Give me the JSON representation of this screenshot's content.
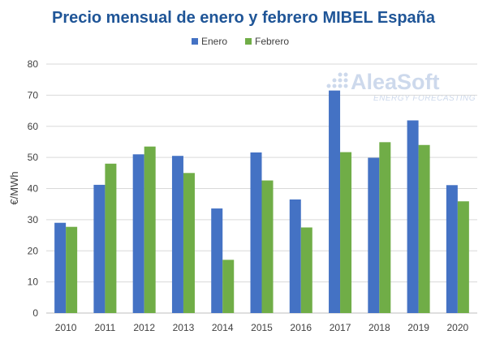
{
  "title": "Precio mensual de enero y febrero MIBEL España",
  "watermark": {
    "brand": "AleaSoft",
    "tagline": "ENERGY FORECASTING"
  },
  "colors": {
    "enero": "#4472c4",
    "febrero": "#70ad47",
    "title": "#1f5597",
    "grid": "#d9d9d9",
    "axis": "#bfbfbf"
  },
  "chart_data": {
    "type": "bar",
    "title": "Precio mensual de enero y febrero MIBEL España",
    "xlabel": "",
    "ylabel": "€/MWh",
    "ylim": [
      0,
      80
    ],
    "yticks": [
      0,
      10,
      20,
      30,
      40,
      50,
      60,
      70,
      80
    ],
    "grid": true,
    "legend_position": "top-center",
    "categories": [
      "2010",
      "2011",
      "2012",
      "2013",
      "2014",
      "2015",
      "2016",
      "2017",
      "2018",
      "2019",
      "2020"
    ],
    "series": [
      {
        "name": "Enero",
        "color": "#4472c4",
        "values": [
          29.0,
          41.2,
          51.0,
          50.5,
          33.6,
          51.6,
          36.5,
          71.5,
          49.9,
          61.9,
          41.1
        ]
      },
      {
        "name": "Febrero",
        "color": "#70ad47",
        "values": [
          27.7,
          48.0,
          53.5,
          45.0,
          17.1,
          42.6,
          27.5,
          51.7,
          54.9,
          54.0,
          35.9
        ]
      }
    ]
  }
}
